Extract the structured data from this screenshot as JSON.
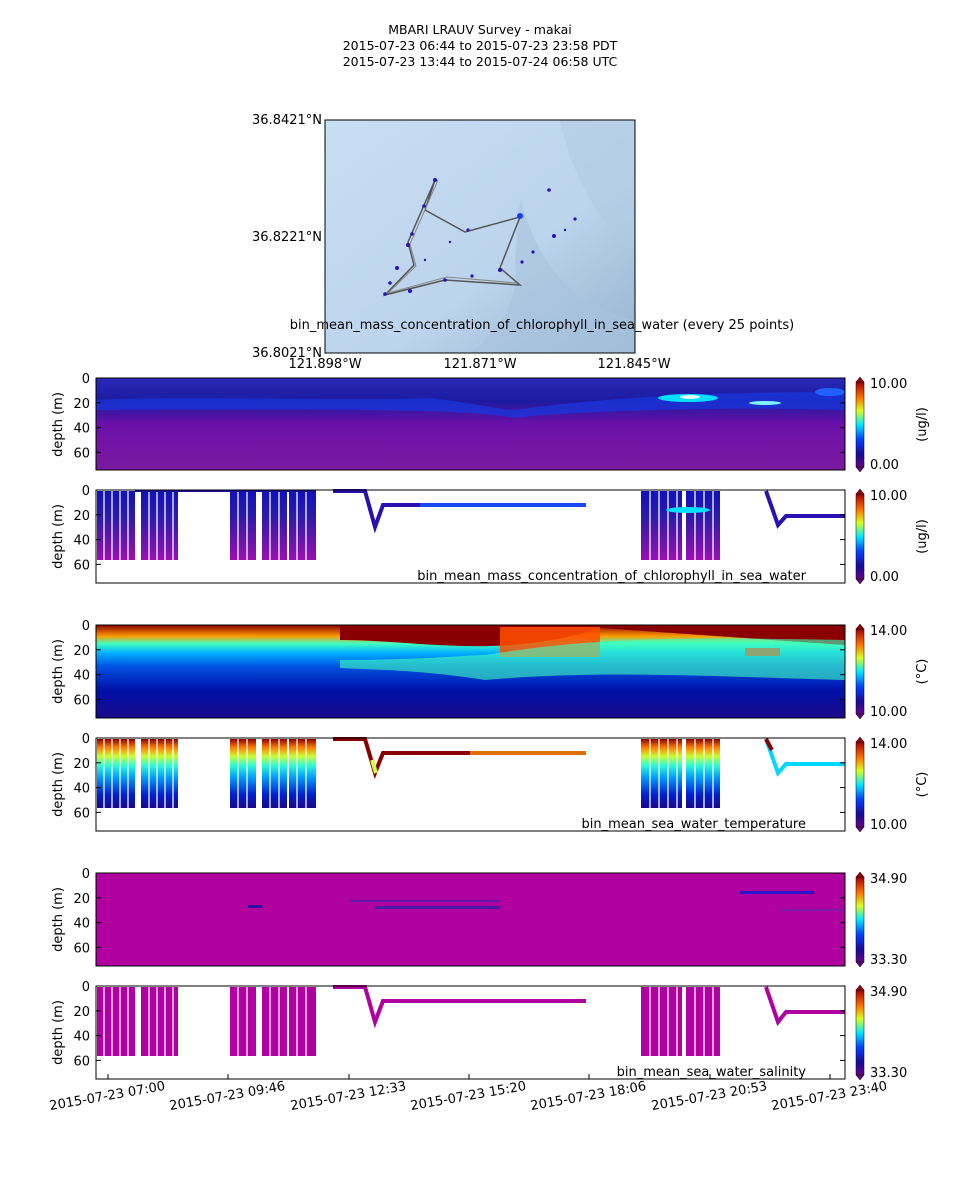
{
  "title": {
    "line1": "MBARI LRAUV Survey - makai",
    "line2": "2015-07-23 06:44  to  2015-07-23 23:58 PDT",
    "line3": "2015-07-23 13:44  to  2015-07-24 06:58 UTC"
  },
  "map": {
    "lat_labels": [
      "36.8421°N",
      "36.8221°N",
      "36.8021°N"
    ],
    "lon_labels": [
      "121.898°W",
      "121.871°W",
      "121.845°W"
    ],
    "caption": "bin_mean_mass_concentration_of_chlorophyll_in_sea_water (every 25 points)",
    "background_color": "#c2daf0",
    "track_color": "#555555",
    "point_color": "#2a12b8"
  },
  "depth_axis": {
    "label": "depth (m)",
    "ticks": [
      "0",
      "20",
      "40",
      "60"
    ]
  },
  "time_axis": {
    "ticks": [
      "2015-07-23 07:00",
      "2015-07-23 09:46",
      "2015-07-23 12:33",
      "2015-07-23 15:20",
      "2015-07-23 18:06",
      "2015-07-23 20:53",
      "2015-07-23 23:40"
    ]
  },
  "chart_data": [
    {
      "type": "heatmap",
      "name": "chlorophyll section",
      "ylabel": "depth (m)",
      "colorbar": {
        "min": "0.00",
        "max": "10.00",
        "unit": "(ug/l)"
      },
      "colormap": "purple-blue-cyan-yellow-red",
      "ylim": [
        75,
        0
      ]
    },
    {
      "type": "scatter",
      "name": "chlorophyll samples",
      "label": "bin_mean_mass_concentration_of_chlorophyll_in_sea_water",
      "ylabel": "depth (m)",
      "colorbar": {
        "min": "0.00",
        "max": "10.00",
        "unit": "(ug/l)"
      },
      "ylim": [
        75,
        0
      ]
    },
    {
      "type": "heatmap",
      "name": "temperature section",
      "ylabel": "depth (m)",
      "colorbar": {
        "min": "10.00",
        "max": "14.00",
        "unit": "(°C)"
      },
      "ylim": [
        75,
        0
      ]
    },
    {
      "type": "scatter",
      "name": "temperature samples",
      "label": "bin_mean_sea_water_temperature",
      "ylabel": "depth (m)",
      "colorbar": {
        "min": "10.00",
        "max": "14.00",
        "unit": "(°C)"
      },
      "ylim": [
        75,
        0
      ]
    },
    {
      "type": "heatmap",
      "name": "salinity section",
      "ylabel": "depth (m)",
      "colorbar": {
        "min": "33.30",
        "max": "34.90",
        "unit": ""
      },
      "ylim": [
        75,
        0
      ]
    },
    {
      "type": "scatter",
      "name": "salinity samples",
      "label": "bin_mean_sea_water_salinity",
      "ylabel": "depth (m)",
      "colorbar": {
        "min": "33.30",
        "max": "34.90",
        "unit": ""
      },
      "ylim": [
        75,
        0
      ]
    }
  ]
}
